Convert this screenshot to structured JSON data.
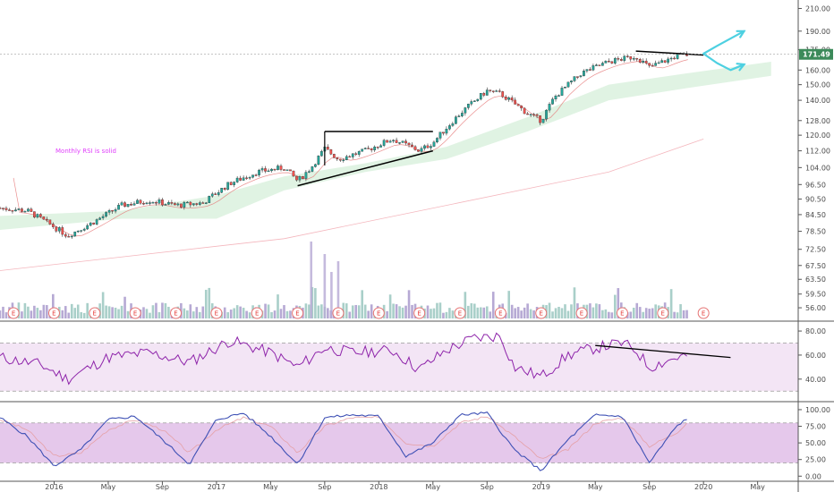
{
  "chart_data": {
    "type": "candlestick",
    "annotation": "Monthly RSI is solid",
    "current_price": {
      "label": "171.49",
      "value": 171.49,
      "color": "#3c8a5a"
    },
    "x_axis": {
      "labels": [
        "2016",
        "May",
        "Sep",
        "2017",
        "May",
        "Sep",
        "2018",
        "May",
        "Sep",
        "2019",
        "May",
        "Sep",
        "2020",
        "May"
      ],
      "range": [
        "2015-09",
        "2020-08"
      ]
    },
    "price_pane": {
      "scale": "log",
      "ylim": [
        53,
        218
      ],
      "ticks": [
        "210.00",
        "190.00",
        "175.00",
        "160.00",
        "150.00",
        "140.00",
        "128.00",
        "120.00",
        "112.00",
        "104.00",
        "96.50",
        "90.50",
        "84.50",
        "78.50",
        "72.50",
        "67.50",
        "63.50",
        "59.50",
        "56.00"
      ],
      "close_path": [
        [
          "2015-09",
          87
        ],
        [
          "2015-11",
          86
        ],
        [
          "2016-01",
          80
        ],
        [
          "2016-02",
          77
        ],
        [
          "2016-04",
          82
        ],
        [
          "2016-06",
          88
        ],
        [
          "2016-08",
          90
        ],
        [
          "2016-10",
          88
        ],
        [
          "2016-12",
          89
        ],
        [
          "2017-02",
          97
        ],
        [
          "2017-04",
          102
        ],
        [
          "2017-06",
          104
        ],
        [
          "2017-07",
          98
        ],
        [
          "2017-08",
          104
        ],
        [
          "2017-09",
          113
        ],
        [
          "2017-10",
          108
        ],
        [
          "2017-12",
          112
        ],
        [
          "2018-02",
          118
        ],
        [
          "2018-04",
          112
        ],
        [
          "2018-05",
          116
        ],
        [
          "2018-07",
          132
        ],
        [
          "2018-09",
          146
        ],
        [
          "2018-10",
          144
        ],
        [
          "2018-12",
          132
        ],
        [
          "2019-01",
          128
        ],
        [
          "2019-02",
          142
        ],
        [
          "2019-04",
          158
        ],
        [
          "2019-06",
          166
        ],
        [
          "2019-08",
          170
        ],
        [
          "2019-09",
          162
        ],
        [
          "2019-11",
          170
        ],
        [
          "2019-12",
          171.49
        ]
      ],
      "ichimoku_cloud": [
        [
          "2015-09",
          79,
          84
        ],
        [
          "2016-06",
          83,
          86
        ],
        [
          "2017-01",
          83,
          92
        ],
        [
          "2017-06",
          94,
          100
        ],
        [
          "2017-12",
          102,
          106
        ],
        [
          "2018-06",
          108,
          114
        ],
        [
          "2018-12",
          122,
          130
        ],
        [
          "2019-06",
          140,
          150
        ],
        [
          "2019-12",
          148,
          158
        ],
        [
          "2020-06",
          156,
          166
        ]
      ],
      "long_moving_average": [
        [
          "2015-09",
          66
        ],
        [
          "2017-06",
          76
        ],
        [
          "2019-06",
          102
        ],
        [
          "2020-01",
          118
        ]
      ],
      "triangle_pattern": {
        "upper": [
          [
            "2017-09",
            122
          ],
          [
            "2018-05",
            122
          ]
        ],
        "lower": [
          [
            "2017-07",
            96
          ],
          [
            "2018-05",
            112
          ]
        ]
      },
      "top_trendline": [
        [
          "2019-08",
          174
        ],
        [
          "2020-01",
          171
        ]
      ],
      "forecast_arrows": [
        [
          [
            "2020-01",
            172
          ],
          [
            "2020-02",
            178
          ],
          [
            "2020-04",
            190
          ]
        ],
        [
          [
            "2020-01",
            172
          ],
          [
            "2020-02",
            165
          ],
          [
            "2020-03",
            160
          ],
          [
            "2020-04",
            164
          ]
        ]
      ],
      "earnings_markers": [
        "2015-10",
        "2016-01",
        "2016-04",
        "2016-07",
        "2016-10",
        "2017-01",
        "2017-04",
        "2017-07",
        "2017-10",
        "2018-01",
        "2018-04",
        "2018-07",
        "2018-10",
        "2019-01",
        "2019-04",
        "2019-07",
        "2019-10",
        "2020-01"
      ],
      "earnings_label": "E"
    },
    "rsi_pane": {
      "ylim": [
        22,
        86
      ],
      "ticks": [
        "80.00",
        "60.00",
        "40.00"
      ],
      "band": [
        30,
        70
      ],
      "values": [
        [
          "2015-09",
          58
        ],
        [
          "2015-12",
          52
        ],
        [
          "2016-02",
          40
        ],
        [
          "2016-05",
          58
        ],
        [
          "2016-08",
          62
        ],
        [
          "2016-11",
          54
        ],
        [
          "2017-02",
          72
        ],
        [
          "2017-05",
          62
        ],
        [
          "2017-07",
          50
        ],
        [
          "2017-09",
          66
        ],
        [
          "2017-11",
          62
        ],
        [
          "2018-02",
          64
        ],
        [
          "2018-04",
          48
        ],
        [
          "2018-06",
          64
        ],
        [
          "2018-08",
          74
        ],
        [
          "2018-10",
          76
        ],
        [
          "2018-11",
          50
        ],
        [
          "2019-01",
          42
        ],
        [
          "2019-03",
          60
        ],
        [
          "2019-05",
          66
        ],
        [
          "2019-07",
          70
        ],
        [
          "2019-08",
          64
        ],
        [
          "2019-09",
          50
        ],
        [
          "2019-11",
          58
        ],
        [
          "2019-12",
          60
        ]
      ],
      "divergence_line": [
        [
          "2019-05",
          68
        ],
        [
          "2020-03",
          58
        ]
      ]
    },
    "stoch_pane": {
      "ylim": [
        -5,
        108
      ],
      "ticks": [
        "100.00",
        "75.00",
        "50.00",
        "25.00",
        "0.00"
      ],
      "band": [
        20,
        80
      ],
      "k": [
        [
          "2015-09",
          88
        ],
        [
          "2015-11",
          60
        ],
        [
          "2016-01",
          15
        ],
        [
          "2016-03",
          40
        ],
        [
          "2016-05",
          85
        ],
        [
          "2016-07",
          90
        ],
        [
          "2016-09",
          55
        ],
        [
          "2016-11",
          18
        ],
        [
          "2017-01",
          85
        ],
        [
          "2017-03",
          95
        ],
        [
          "2017-05",
          60
        ],
        [
          "2017-07",
          18
        ],
        [
          "2017-09",
          88
        ],
        [
          "2017-11",
          92
        ],
        [
          "2018-01",
          90
        ],
        [
          "2018-03",
          30
        ],
        [
          "2018-05",
          50
        ],
        [
          "2018-07",
          92
        ],
        [
          "2018-09",
          95
        ],
        [
          "2018-11",
          40
        ],
        [
          "2019-01",
          8
        ],
        [
          "2019-03",
          55
        ],
        [
          "2019-05",
          92
        ],
        [
          "2019-07",
          90
        ],
        [
          "2019-09",
          20
        ],
        [
          "2019-11",
          75
        ],
        [
          "2019-12",
          90
        ]
      ],
      "d": [
        [
          "2015-09",
          85
        ],
        [
          "2015-11",
          70
        ],
        [
          "2016-01",
          30
        ],
        [
          "2016-03",
          35
        ],
        [
          "2016-05",
          70
        ],
        [
          "2016-07",
          85
        ],
        [
          "2016-09",
          70
        ],
        [
          "2016-11",
          35
        ],
        [
          "2017-01",
          70
        ],
        [
          "2017-03",
          88
        ],
        [
          "2017-05",
          75
        ],
        [
          "2017-07",
          35
        ],
        [
          "2017-09",
          75
        ],
        [
          "2017-11",
          88
        ],
        [
          "2018-01",
          88
        ],
        [
          "2018-03",
          50
        ],
        [
          "2018-05",
          45
        ],
        [
          "2018-07",
          80
        ],
        [
          "2018-09",
          90
        ],
        [
          "2018-11",
          60
        ],
        [
          "2019-01",
          25
        ],
        [
          "2019-03",
          40
        ],
        [
          "2019-05",
          80
        ],
        [
          "2019-07",
          88
        ],
        [
          "2019-09",
          45
        ],
        [
          "2019-11",
          65
        ],
        [
          "2019-12",
          85
        ]
      ]
    },
    "colors": {
      "up": "#26a69a",
      "down": "#ef5350",
      "cloud": "#d8f0dc",
      "rsi_line": "#8e24aa",
      "rsi_band": "#f3e5f5",
      "stoch_k": "#3f51b5",
      "stoch_band": "#e1bee7",
      "arrow": "#4dd0e1",
      "volume_up": "#a9cfc9",
      "volume_down": "#b6a9d4"
    }
  }
}
